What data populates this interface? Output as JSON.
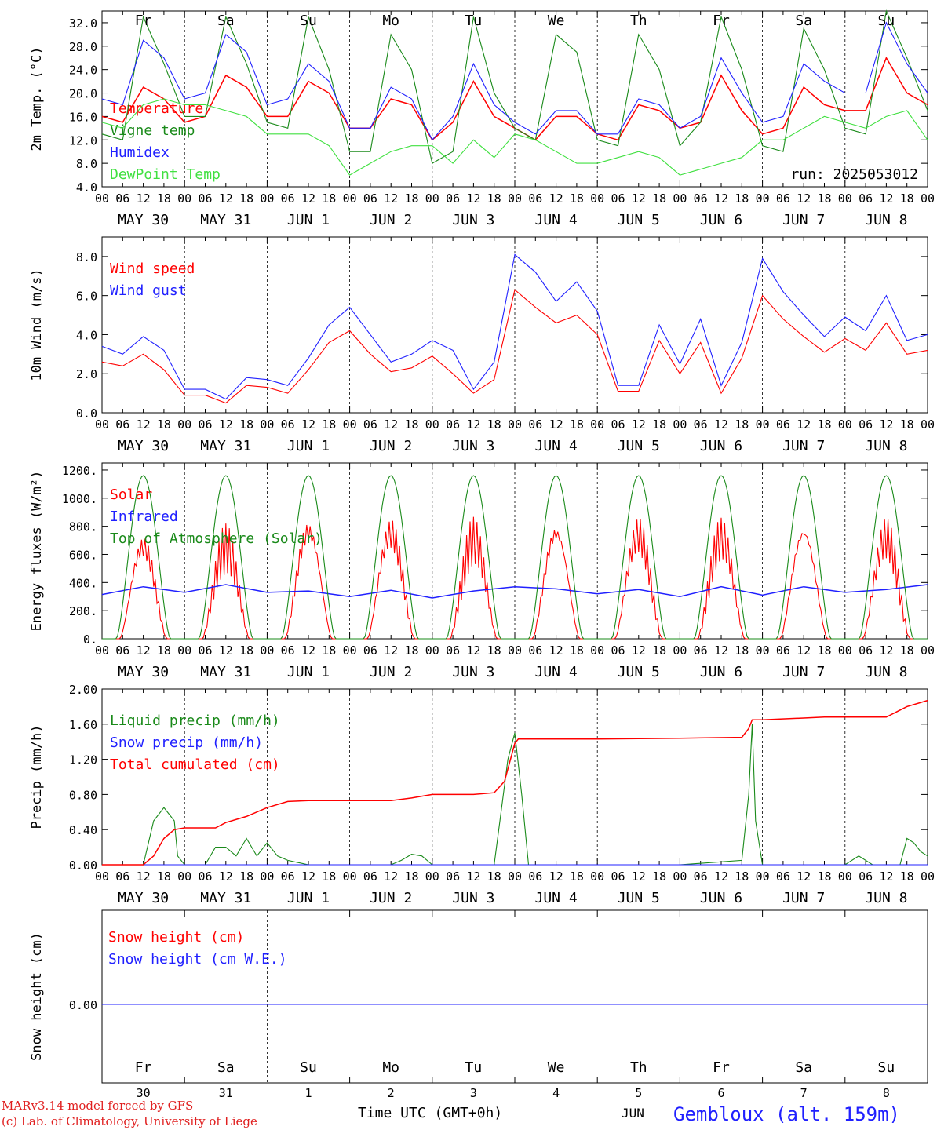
{
  "chart_data": [
    {
      "type": "line",
      "ylabel": "2m Temp. (°C)",
      "ylim": [
        4,
        34
      ],
      "yticks": [
        "32.0",
        "28.0",
        "24.0",
        "20.0",
        "16.0",
        "12.0",
        "8.0",
        "4.0"
      ],
      "ytick_values": [
        32,
        28,
        24,
        20,
        16,
        12,
        8,
        4
      ],
      "weekday_labels": [
        "Fr",
        "Sa",
        "Su",
        "Mo",
        "Tu",
        "We",
        "Th",
        "Fr",
        "Sa",
        "Su"
      ],
      "weekend_color": "#e02020",
      "annotation": "run: 2025053012",
      "series": [
        {
          "name": "Temperature",
          "color": "#ff0000",
          "x_hours": [
            0,
            6,
            12,
            18,
            24,
            30,
            36,
            42,
            48,
            54,
            60,
            66,
            72,
            78,
            84,
            90,
            96,
            102,
            108,
            114,
            120,
            126,
            132,
            138,
            144,
            150,
            156,
            162,
            168,
            174,
            180,
            186,
            192,
            198,
            204,
            210,
            216,
            222,
            228,
            234,
            240
          ],
          "values": [
            16,
            15,
            21,
            19,
            15,
            16,
            23,
            21,
            16,
            16,
            22,
            20,
            14,
            14,
            19,
            18,
            12,
            15,
            22,
            16,
            14,
            12,
            16,
            16,
            13,
            12,
            18,
            17,
            14,
            15,
            23,
            17,
            13,
            14,
            21,
            18,
            17,
            17,
            26,
            20,
            18
          ]
        },
        {
          "name": "Vigne temp",
          "color": "#1a8a1a",
          "x_hours": [
            0,
            6,
            12,
            18,
            24,
            30,
            36,
            42,
            48,
            54,
            60,
            66,
            72,
            78,
            84,
            90,
            96,
            102,
            108,
            114,
            120,
            126,
            132,
            138,
            144,
            150,
            156,
            162,
            168,
            174,
            180,
            186,
            192,
            198,
            204,
            210,
            216,
            222,
            228,
            234,
            240
          ],
          "values": [
            13,
            12,
            33,
            25,
            16,
            16,
            33,
            25,
            15,
            14,
            33,
            24,
            10,
            10,
            30,
            24,
            8,
            10,
            33,
            20,
            14,
            12,
            30,
            27,
            12,
            11,
            30,
            24,
            11,
            15,
            33,
            24,
            11,
            10,
            31,
            24,
            14,
            13,
            34,
            26,
            17
          ]
        },
        {
          "name": "Humidex",
          "color": "#2020ff",
          "x_hours": [
            0,
            6,
            12,
            18,
            24,
            30,
            36,
            42,
            48,
            54,
            60,
            66,
            72,
            78,
            84,
            90,
            96,
            102,
            108,
            114,
            120,
            126,
            132,
            138,
            144,
            150,
            156,
            162,
            168,
            174,
            180,
            186,
            192,
            198,
            204,
            210,
            216,
            222,
            228,
            234,
            240
          ],
          "values": [
            19,
            18,
            29,
            26,
            19,
            20,
            30,
            27,
            18,
            19,
            25,
            22,
            14,
            14,
            21,
            19,
            12,
            16,
            25,
            18,
            15,
            13,
            17,
            17,
            13,
            13,
            19,
            18,
            14,
            16,
            26,
            20,
            15,
            16,
            25,
            22,
            20,
            20,
            32,
            25,
            20
          ]
        },
        {
          "name": "DewPoint Temp",
          "color": "#40e040",
          "x_hours": [
            0,
            6,
            12,
            18,
            24,
            30,
            36,
            42,
            48,
            54,
            60,
            66,
            72,
            78,
            84,
            90,
            96,
            102,
            108,
            114,
            120,
            126,
            132,
            138,
            144,
            150,
            156,
            162,
            168,
            174,
            180,
            186,
            192,
            198,
            204,
            210,
            216,
            222,
            228,
            234,
            240
          ],
          "values": [
            15,
            14,
            18,
            19,
            18,
            18,
            17,
            16,
            13,
            13,
            13,
            11,
            6,
            8,
            10,
            11,
            11,
            8,
            12,
            9,
            13,
            12,
            10,
            8,
            8,
            9,
            10,
            9,
            6,
            7,
            8,
            9,
            12,
            12,
            14,
            16,
            15,
            14,
            16,
            17,
            12
          ]
        }
      ]
    },
    {
      "type": "line",
      "ylabel": "10m Wind (m/s)",
      "ylim": [
        0,
        9
      ],
      "yticks": [
        "8.0",
        "6.0",
        "4.0",
        "2.0",
        "0.0"
      ],
      "ytick_values": [
        8,
        6,
        4,
        2,
        0
      ],
      "reference_line": 5,
      "series": [
        {
          "name": "Wind speed",
          "color": "#ff0000",
          "x_hours": [
            0,
            6,
            12,
            18,
            24,
            30,
            36,
            42,
            48,
            54,
            60,
            66,
            72,
            78,
            84,
            90,
            96,
            102,
            108,
            114,
            120,
            126,
            132,
            138,
            144,
            150,
            156,
            162,
            168,
            174,
            180,
            186,
            192,
            198,
            204,
            210,
            216,
            222,
            228,
            234,
            240
          ],
          "values": [
            2.6,
            2.4,
            3.0,
            2.2,
            0.9,
            0.9,
            0.5,
            1.4,
            1.3,
            1.0,
            2.2,
            3.6,
            4.2,
            3.0,
            2.1,
            2.3,
            2.9,
            2.0,
            1.0,
            1.7,
            6.3,
            5.4,
            4.6,
            5.0,
            4.0,
            1.1,
            1.1,
            3.7,
            2.0,
            3.6,
            1.0,
            2.8,
            6.0,
            4.8,
            3.9,
            3.1,
            3.8,
            3.2,
            4.6,
            3.0,
            3.2
          ]
        },
        {
          "name": "Wind gust",
          "color": "#2020ff",
          "x_hours": [
            0,
            6,
            12,
            18,
            24,
            30,
            36,
            42,
            48,
            54,
            60,
            66,
            72,
            78,
            84,
            90,
            96,
            102,
            108,
            114,
            120,
            126,
            132,
            138,
            144,
            150,
            156,
            162,
            168,
            174,
            180,
            186,
            192,
            198,
            204,
            210,
            216,
            222,
            228,
            234,
            240
          ],
          "values": [
            3.4,
            3.0,
            3.9,
            3.2,
            1.2,
            1.2,
            0.7,
            1.8,
            1.7,
            1.4,
            2.8,
            4.5,
            5.4,
            4.0,
            2.6,
            3.0,
            3.7,
            3.2,
            1.2,
            2.6,
            8.1,
            7.2,
            5.7,
            6.7,
            5.2,
            1.4,
            1.4,
            4.5,
            2.5,
            4.8,
            1.4,
            3.6,
            7.9,
            6.2,
            5.0,
            3.9,
            4.9,
            4.2,
            6.0,
            3.7,
            4.0
          ]
        }
      ]
    },
    {
      "type": "line",
      "ylabel": "Energy fluxes (W/m²)",
      "ylim": [
        0,
        1250
      ],
      "yticks": [
        "1200.",
        "1000.",
        "800.",
        "600.",
        "400.",
        "200.",
        "0."
      ],
      "ytick_values": [
        1200,
        1000,
        800,
        600,
        400,
        200,
        0
      ],
      "series": [
        {
          "name": "Solar",
          "color": "#ff0000",
          "daily_peak": [
            760,
            820,
            880,
            880,
            870,
            860,
            880,
            870,
            860,
            870
          ]
        },
        {
          "name": "Infrared",
          "color": "#2020ff",
          "x_hours": [
            0,
            12,
            24,
            36,
            48,
            60,
            72,
            84,
            96,
            108,
            120,
            132,
            144,
            156,
            168,
            180,
            192,
            204,
            216,
            228,
            240
          ],
          "values": [
            315,
            370,
            330,
            385,
            330,
            340,
            300,
            345,
            290,
            340,
            370,
            355,
            320,
            350,
            300,
            370,
            310,
            370,
            330,
            350,
            385
          ]
        },
        {
          "name": "Top of Atmosphere (Solar)",
          "color": "#1a8a1a",
          "daily_peak": [
            1160,
            1160,
            1160,
            1160,
            1160,
            1160,
            1160,
            1160,
            1160,
            1160
          ]
        }
      ]
    },
    {
      "type": "line",
      "ylabel": "Precip (mm/h)",
      "ylim": [
        0,
        2
      ],
      "yticks": [
        "2.00",
        "1.60",
        "1.20",
        "0.80",
        "0.40",
        "0.00"
      ],
      "ytick_values": [
        2,
        1.6,
        1.2,
        0.8,
        0.4,
        0
      ],
      "series": [
        {
          "name": "Liquid precip (mm/h)",
          "color": "#1a8a1a",
          "x_hours": [
            0,
            12,
            15,
            18,
            21,
            22,
            24,
            30,
            33,
            36,
            39,
            42,
            45,
            48,
            51,
            54,
            60,
            84,
            87,
            90,
            93,
            96,
            114,
            116,
            118,
            120,
            122,
            124,
            144,
            168,
            186,
            188,
            189,
            190,
            192,
            204,
            216,
            220,
            224,
            228,
            232,
            234,
            236,
            238,
            240
          ],
          "values": [
            0,
            0,
            0.5,
            0.65,
            0.5,
            0.1,
            0,
            0,
            0.2,
            0.2,
            0.1,
            0.3,
            0.1,
            0.25,
            0.1,
            0.05,
            0,
            0,
            0.05,
            0.12,
            0.1,
            0,
            0,
            0.6,
            1.2,
            1.5,
            0.8,
            0,
            0,
            0,
            0.05,
            0.8,
            1.6,
            0.5,
            0,
            0,
            0,
            0.1,
            0,
            0,
            0,
            0.3,
            0.25,
            0.15,
            0.1
          ]
        },
        {
          "name": "Snow precip (mm/h)",
          "color": "#2020ff",
          "x_hours": [
            0,
            240
          ],
          "values": [
            0,
            0
          ]
        },
        {
          "name": "Total cumulated (cm)",
          "color": "#ff0000",
          "x_hours": [
            0,
            12,
            15,
            18,
            21,
            24,
            33,
            36,
            42,
            48,
            54,
            60,
            84,
            90,
            96,
            108,
            114,
            117,
            120,
            121,
            144,
            168,
            186,
            188,
            189,
            192,
            204,
            210,
            228,
            234,
            240
          ],
          "values": [
            0,
            0,
            0.1,
            0.3,
            0.4,
            0.42,
            0.42,
            0.48,
            0.55,
            0.65,
            0.72,
            0.73,
            0.73,
            0.76,
            0.8,
            0.8,
            0.82,
            0.95,
            1.38,
            1.43,
            1.43,
            1.44,
            1.45,
            1.55,
            1.65,
            1.65,
            1.67,
            1.68,
            1.68,
            1.8,
            1.87
          ]
        }
      ]
    },
    {
      "type": "line",
      "ylabel": "Snow height (cm)",
      "ytick_values": [
        0
      ],
      "yticks": [
        "0.00"
      ],
      "series": [
        {
          "name": "Snow height (cm)",
          "color": "#ff0000",
          "x_hours": [
            0,
            240
          ],
          "values": [
            0,
            0
          ]
        },
        {
          "name": "Snow height (cm W.E.)",
          "color": "#2020ff",
          "x_hours": [
            0,
            240
          ],
          "values": [
            0,
            0
          ]
        }
      ]
    }
  ],
  "hour_ticks": [
    "00",
    "06",
    "12",
    "18"
  ],
  "date_labels": [
    "MAY 30",
    "MAY 31",
    "JUN  1",
    "JUN  2",
    "JUN  3",
    "JUN  4",
    "JUN  5",
    "JUN  6",
    "JUN  7",
    "JUN  8"
  ],
  "bottom_weekdays": [
    "Fr",
    "Sa",
    "Su",
    "Mo",
    "Tu",
    "We",
    "Th",
    "Fr",
    "Sa",
    "Su"
  ],
  "bottom_days": [
    "30",
    "31",
    "1",
    "2",
    "3",
    "4",
    "5",
    "6",
    "7",
    "8"
  ],
  "bottom_month": "JUN",
  "xlabel": "Time UTC (GMT+0h)",
  "credit_line1": "MARv3.14 model forced by GFS",
  "credit_line2": "(c) Lab. of Climatology, University of Liege",
  "station": "Gembloux (alt. 159m)"
}
